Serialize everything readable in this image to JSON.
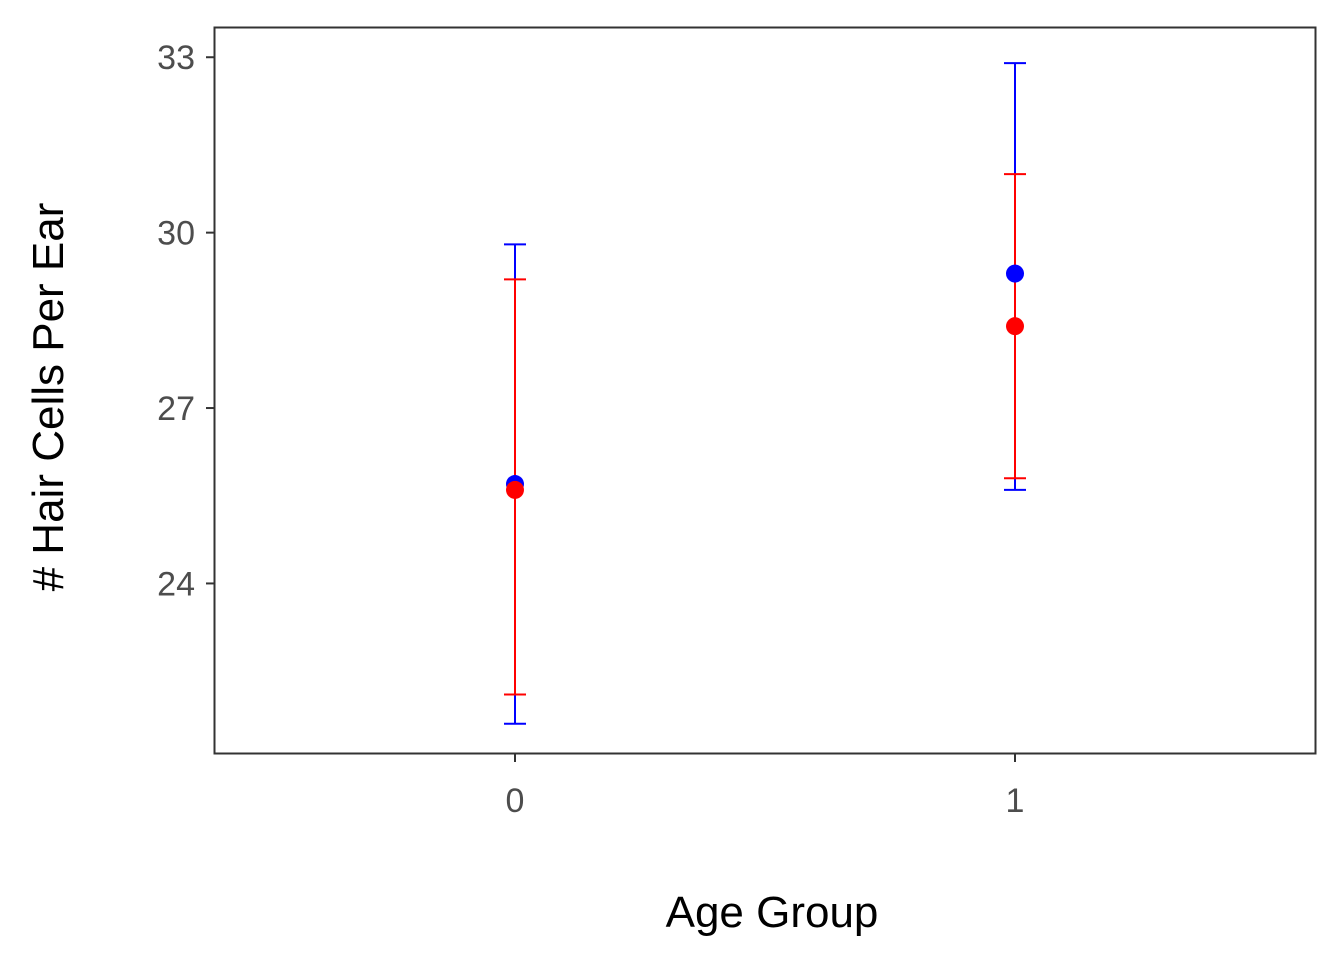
{
  "chart_data": {
    "type": "scatter",
    "title": "",
    "xlabel": "Age Group",
    "ylabel": "# Hair Cells Per Ear",
    "x_ticks": [
      "0",
      "1"
    ],
    "y_ticks": [
      "24",
      "27",
      "30",
      "33"
    ],
    "xlim": [
      -0.6,
      1.6
    ],
    "ylim": [
      21.1,
      33.5
    ],
    "grid": false,
    "legend": null,
    "series": [
      {
        "color": "#0000ff",
        "points": [
          {
            "x": 0,
            "y": 25.7,
            "ymin": 21.6,
            "ymax": 29.8
          },
          {
            "x": 1,
            "y": 29.3,
            "ymin": 25.6,
            "ymax": 32.9
          }
        ]
      },
      {
        "color": "#ff0000",
        "points": [
          {
            "x": 0,
            "y": 25.6,
            "ymin": 22.1,
            "ymax": 29.2
          },
          {
            "x": 1,
            "y": 28.4,
            "ymin": 25.8,
            "ymax": 31.0
          }
        ]
      }
    ]
  }
}
